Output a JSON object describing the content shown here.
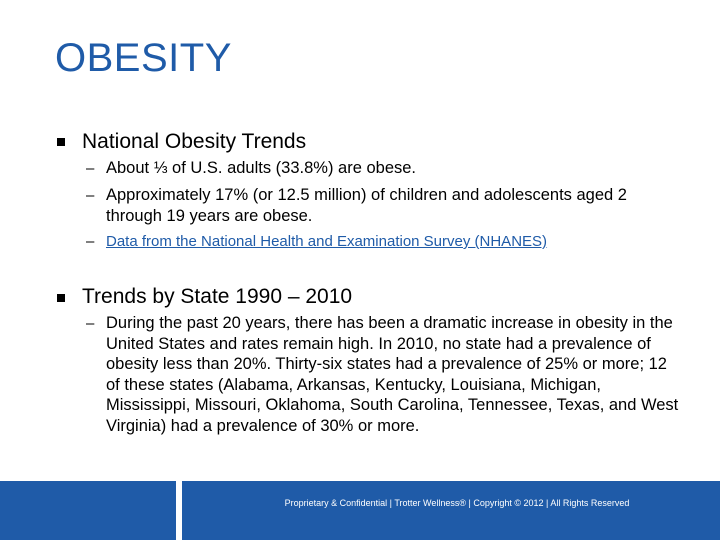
{
  "slide": {
    "title": "OBESITY",
    "bullets": [
      {
        "text": "National Obesity Trends",
        "subs": [
          "About ⅓ of U.S. adults (33.8%) are obese.",
          "Approximately 17% (or 12.5 million) of children and adolescents aged 2 through 19 years are obese.",
          "Data from the National Health and Examination Survey (NHANES)"
        ]
      },
      {
        "text": "Trends by State 1990 – 2010",
        "subs": [
          "During the past 20 years, there has been a dramatic increase in obesity in the United States and rates remain high.  In 2010, no state had a prevalence of obesity less than 20%.  Thirty-six states had a prevalence of 25% or more; 12 of these states (Alabama, Arkansas, Kentucky, Louisiana, Michigan, Mississippi, Missouri, Oklahoma, South Carolina, Tennessee, Texas, and West Virginia) had a prevalence of 30% or more."
        ]
      }
    ],
    "dash_symbol": "–"
  },
  "footer": {
    "text": "Proprietary & Confidential | Trotter Wellness® | Copyright © 2012 | All Rights Reserved"
  },
  "colors": {
    "accent": "#1f5ba8",
    "text": "#000000",
    "background": "#ffffff"
  }
}
